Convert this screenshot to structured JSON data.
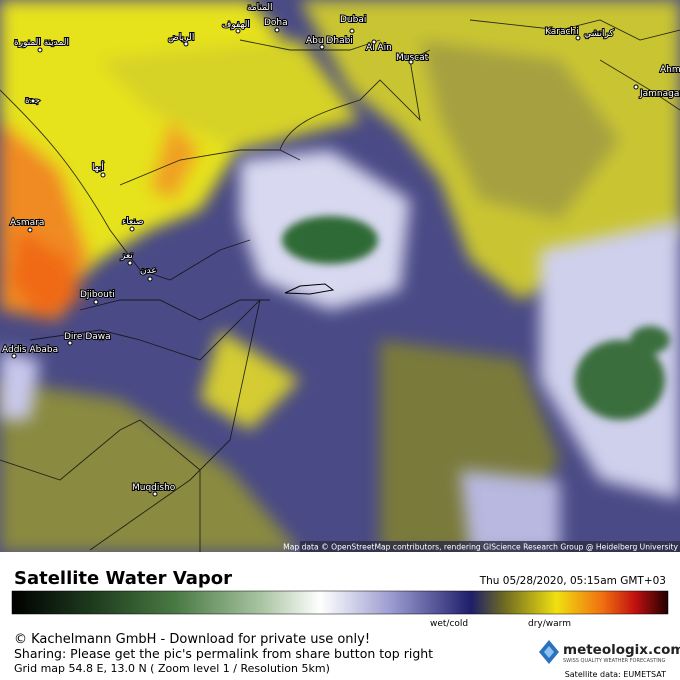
{
  "map": {
    "cities": [
      "المنامة",
      "الهفوف",
      "Doha",
      "Dubai",
      "Abu Dhabi",
      "Al Ain",
      "Muscat",
      "Karachi",
      "كراتشي",
      "Ahm",
      "Jamnagar",
      "المدينة المنورة",
      "الرياض",
      "جدة",
      "أبها",
      "Asmara",
      "صنعاء",
      "تعز",
      "عدن",
      "Djibouti",
      "Dire Dawa",
      "Addis Ababa",
      "Muqdisho"
    ],
    "attribution": "Map data © OpenStreetMap contributors, rendering GIScience Research Group @ Heidelberg University"
  },
  "footer": {
    "title": "Satellite Water Vapor",
    "datetime": "Thu 05/28/2020, 05:15am GMT+03",
    "scale_left": "wet/cold",
    "scale_right": "dry/warm",
    "copyright": "© Kachelmann GmbH - Download for private use only!",
    "sharing": "Sharing: Please get the pic's permalink from share button top right",
    "grid": "Grid map 54.8 E, 13.0 N ( Zoom level 1 / Resolution 5km)",
    "logo": "meteologix.com",
    "tagline": "SWISS QUALITY WEATHER FORECASTING",
    "source": "Satellite data: EUMETSAT"
  }
}
